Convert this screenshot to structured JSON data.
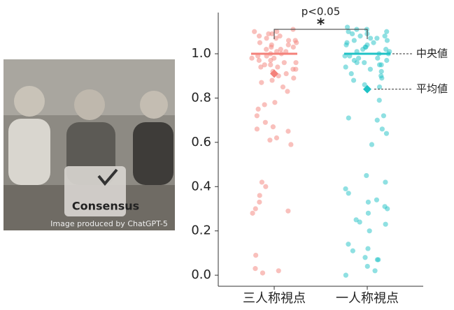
{
  "image": {
    "badge": "Consensus",
    "credit": "Image produced by ChatGPT-5"
  },
  "chart_data": {
    "type": "strip",
    "categories": [
      "三人称視点",
      "一人称視点"
    ],
    "series": [
      {
        "color": "#f4817a",
        "median": 1.0,
        "mean": 0.91,
        "values": [
          1.11,
          1.1,
          1.1,
          1.09,
          1.09,
          1.08,
          1.08,
          1.07,
          1.07,
          1.06,
          1.06,
          1.05,
          1.05,
          1.04,
          1.04,
          1.03,
          1.03,
          1.02,
          1.02,
          1.01,
          1.01,
          1.0,
          1.0,
          0.99,
          0.99,
          0.98,
          0.98,
          0.97,
          0.97,
          0.96,
          0.96,
          0.95,
          0.95,
          0.94,
          0.94,
          0.93,
          0.93,
          0.92,
          0.91,
          0.9,
          0.89,
          0.88,
          0.87,
          0.85,
          0.83,
          0.77,
          0.78,
          0.75,
          0.72,
          0.69,
          0.66,
          0.65,
          0.62,
          0.61,
          0.59,
          0.67,
          0.42,
          0.4,
          0.36,
          0.33,
          0.3,
          0.29,
          0.28,
          0.09,
          0.03,
          0.02,
          0.01
        ]
      },
      {
        "color": "#1fc2c5",
        "median": 1.0,
        "mean": 0.84,
        "values": [
          1.12,
          1.11,
          1.11,
          1.1,
          1.1,
          1.09,
          1.09,
          1.08,
          1.08,
          1.07,
          1.07,
          1.06,
          1.06,
          1.05,
          1.05,
          1.04,
          1.04,
          1.03,
          1.03,
          1.02,
          1.02,
          1.01,
          1.01,
          1.0,
          1.0,
          0.99,
          0.99,
          0.98,
          0.98,
          0.97,
          0.97,
          0.96,
          0.96,
          0.95,
          0.95,
          0.94,
          0.93,
          0.92,
          0.91,
          0.9,
          0.89,
          0.88,
          0.86,
          0.85,
          0.79,
          0.72,
          0.71,
          0.7,
          0.66,
          0.64,
          0.59,
          0.45,
          0.42,
          0.39,
          0.37,
          0.34,
          0.33,
          0.31,
          0.3,
          0.28,
          0.25,
          0.24,
          0.23,
          0.2,
          0.14,
          0.12,
          0.11,
          0.08,
          0.07,
          0.07,
          0.04,
          0.02,
          0.0
        ]
      }
    ],
    "ylim": [
      -0.05,
      1.186
    ],
    "yticks": [
      {
        "value": 0,
        "label": "0.0"
      },
      0.2,
      0.4,
      0.6,
      0.8,
      {
        "value": 1,
        "label": "1.0"
      }
    ],
    "significance": {
      "label": "p<0.05",
      "marker": "*"
    },
    "median_label": "中央値",
    "mean_label": "平均値"
  }
}
